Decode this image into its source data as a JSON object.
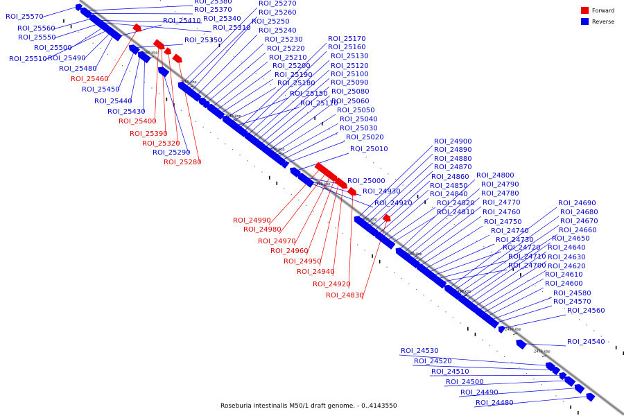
{
  "caption": "Roseburia intestinalis M50/1 draft genome. - 0..4143550",
  "legend": [
    {
      "label": "Forward",
      "color": "#ee0000"
    },
    {
      "label": "Reverse",
      "color": "#0000ee"
    }
  ],
  "colors": {
    "forward": "#ee0000",
    "reverse": "#0000ee",
    "forward_label": "#dd0000",
    "reverse_label": "#0000cc",
    "backbone": "#888888"
  },
  "kbp_marks": [
    {
      "label": "2560 kbp"
    },
    {
      "label": "2550 kbp"
    },
    {
      "label": "2540 kbp"
    },
    {
      "label": "2530 kbp"
    },
    {
      "label": "2520 kbp"
    },
    {
      "label": "2510 kbp"
    },
    {
      "label": "2500 kbp"
    },
    {
      "label": "2490 kbp"
    },
    {
      "label": "2480 kbp"
    },
    {
      "label": "2470 kbp"
    }
  ],
  "features": [
    {
      "name": "ROI_25570",
      "strand": "reverse"
    },
    {
      "name": "ROI_25560",
      "strand": "reverse"
    },
    {
      "name": "ROI_25550",
      "strand": "reverse"
    },
    {
      "name": "ROI_25500",
      "strand": "reverse"
    },
    {
      "name": "ROI_25510",
      "strand": "reverse"
    },
    {
      "name": "ROI_25490",
      "strand": "reverse"
    },
    {
      "name": "ROI_25480",
      "strand": "reverse"
    },
    {
      "name": "ROI_25460",
      "strand": "forward"
    },
    {
      "name": "ROI_25450",
      "strand": "reverse"
    },
    {
      "name": "ROI_25440",
      "strand": "reverse"
    },
    {
      "name": "ROI_25430",
      "strand": "reverse"
    },
    {
      "name": "ROI_25400",
      "strand": "forward"
    },
    {
      "name": "ROI_25390",
      "strand": "forward"
    },
    {
      "name": "ROI_25320",
      "strand": "forward"
    },
    {
      "name": "ROI_25290",
      "strand": "reverse"
    },
    {
      "name": "ROI_25280",
      "strand": "forward"
    },
    {
      "name": "ROI_25380",
      "strand": "reverse"
    },
    {
      "name": "ROI_25370",
      "strand": "reverse"
    },
    {
      "name": "ROI_25410",
      "strand": "reverse"
    },
    {
      "name": "ROI_25340",
      "strand": "reverse"
    },
    {
      "name": "ROI_25310",
      "strand": "reverse"
    },
    {
      "name": "ROI_25350",
      "strand": "reverse"
    },
    {
      "name": "ROI_25270",
      "strand": "reverse"
    },
    {
      "name": "ROI_25260",
      "strand": "reverse"
    },
    {
      "name": "ROI_25250",
      "strand": "reverse"
    },
    {
      "name": "ROI_25240",
      "strand": "reverse"
    },
    {
      "name": "ROI_25230",
      "strand": "reverse"
    },
    {
      "name": "ROI_25220",
      "strand": "reverse"
    },
    {
      "name": "ROI_25210",
      "strand": "reverse"
    },
    {
      "name": "ROI_25200",
      "strand": "reverse"
    },
    {
      "name": "ROI_25190",
      "strand": "reverse"
    },
    {
      "name": "ROI_25180",
      "strand": "reverse"
    },
    {
      "name": "ROI_25150",
      "strand": "reverse"
    },
    {
      "name": "ROI_25110",
      "strand": "reverse"
    },
    {
      "name": "ROI_25170",
      "strand": "reverse"
    },
    {
      "name": "ROI_25160",
      "strand": "reverse"
    },
    {
      "name": "ROI_25130",
      "strand": "reverse"
    },
    {
      "name": "ROI_25120",
      "strand": "reverse"
    },
    {
      "name": "ROI_25100",
      "strand": "reverse"
    },
    {
      "name": "ROI_25090",
      "strand": "reverse"
    },
    {
      "name": "ROI_25080",
      "strand": "reverse"
    },
    {
      "name": "ROI_25060",
      "strand": "reverse"
    },
    {
      "name": "ROI_25050",
      "strand": "reverse"
    },
    {
      "name": "ROI_25040",
      "strand": "reverse"
    },
    {
      "name": "ROI_25030",
      "strand": "reverse"
    },
    {
      "name": "ROI_25020",
      "strand": "reverse"
    },
    {
      "name": "ROI_25010",
      "strand": "reverse"
    },
    {
      "name": "ROI_25000",
      "strand": "reverse"
    },
    {
      "name": "ROI_24930",
      "strand": "reverse"
    },
    {
      "name": "ROI_24910",
      "strand": "reverse"
    },
    {
      "name": "ROI_24990",
      "strand": "forward"
    },
    {
      "name": "ROI_24980",
      "strand": "forward"
    },
    {
      "name": "ROI_24970",
      "strand": "forward"
    },
    {
      "name": "ROI_24960",
      "strand": "forward"
    },
    {
      "name": "ROI_24950",
      "strand": "forward"
    },
    {
      "name": "ROI_24940",
      "strand": "forward"
    },
    {
      "name": "ROI_24920",
      "strand": "forward"
    },
    {
      "name": "ROI_24830",
      "strand": "forward"
    },
    {
      "name": "ROI_24900",
      "strand": "reverse"
    },
    {
      "name": "ROI_24890",
      "strand": "reverse"
    },
    {
      "name": "ROI_24880",
      "strand": "reverse"
    },
    {
      "name": "ROI_24870",
      "strand": "reverse"
    },
    {
      "name": "ROI_24860",
      "strand": "reverse"
    },
    {
      "name": "ROI_24850",
      "strand": "reverse"
    },
    {
      "name": "ROI_24840",
      "strand": "reverse"
    },
    {
      "name": "ROI_24820",
      "strand": "reverse"
    },
    {
      "name": "ROI_24810",
      "strand": "reverse"
    },
    {
      "name": "ROI_24800",
      "strand": "reverse"
    },
    {
      "name": "ROI_24790",
      "strand": "reverse"
    },
    {
      "name": "ROI_24780",
      "strand": "reverse"
    },
    {
      "name": "ROI_24770",
      "strand": "reverse"
    },
    {
      "name": "ROI_24760",
      "strand": "reverse"
    },
    {
      "name": "ROI_24750",
      "strand": "reverse"
    },
    {
      "name": "ROI_24740",
      "strand": "reverse"
    },
    {
      "name": "ROI_24730",
      "strand": "reverse"
    },
    {
      "name": "ROI_24720",
      "strand": "reverse"
    },
    {
      "name": "ROI_24710",
      "strand": "reverse"
    },
    {
      "name": "ROI_24700",
      "strand": "reverse"
    },
    {
      "name": "ROI_24690",
      "strand": "reverse"
    },
    {
      "name": "ROI_24680",
      "strand": "reverse"
    },
    {
      "name": "ROI_24670",
      "strand": "reverse"
    },
    {
      "name": "ROI_24660",
      "strand": "reverse"
    },
    {
      "name": "ROI_24650",
      "strand": "reverse"
    },
    {
      "name": "ROI_24640",
      "strand": "reverse"
    },
    {
      "name": "ROI_24630",
      "strand": "reverse"
    },
    {
      "name": "ROI_24620",
      "strand": "reverse"
    },
    {
      "name": "ROI_24610",
      "strand": "reverse"
    },
    {
      "name": "ROI_24600",
      "strand": "reverse"
    },
    {
      "name": "ROI_24580",
      "strand": "reverse"
    },
    {
      "name": "ROI_24570",
      "strand": "reverse"
    },
    {
      "name": "ROI_24560",
      "strand": "reverse"
    },
    {
      "name": "ROI_24540",
      "strand": "reverse"
    },
    {
      "name": "ROI_24530",
      "strand": "reverse"
    },
    {
      "name": "ROI_24520",
      "strand": "reverse"
    },
    {
      "name": "ROI_24510",
      "strand": "reverse"
    },
    {
      "name": "ROI_24500",
      "strand": "reverse"
    },
    {
      "name": "ROI_24490",
      "strand": "reverse"
    },
    {
      "name": "ROI_24480",
      "strand": "reverse"
    }
  ]
}
